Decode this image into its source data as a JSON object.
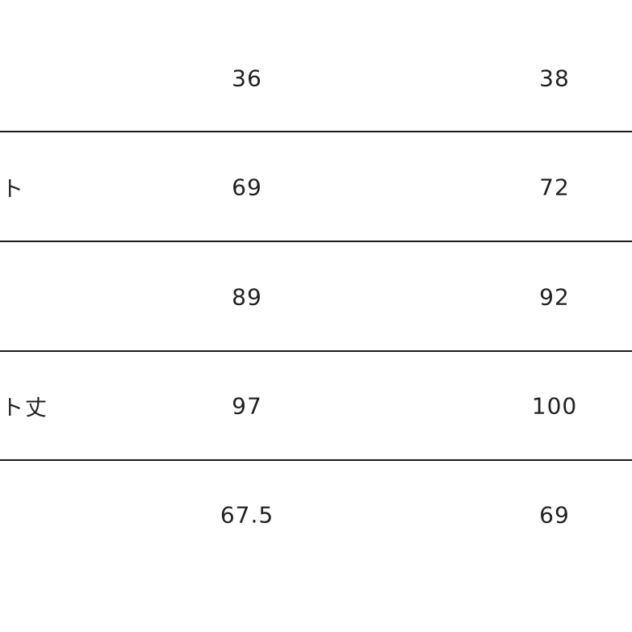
{
  "table": {
    "rows": [
      {
        "label": "",
        "values": [
          "36",
          "38"
        ]
      },
      {
        "label": "ト",
        "values": [
          "69",
          "72"
        ]
      },
      {
        "label": "",
        "values": [
          "89",
          "92"
        ]
      },
      {
        "label": "ト丈",
        "values": [
          "97",
          "100"
        ]
      },
      {
        "label": "",
        "values": [
          "67.5",
          "69"
        ]
      }
    ]
  }
}
